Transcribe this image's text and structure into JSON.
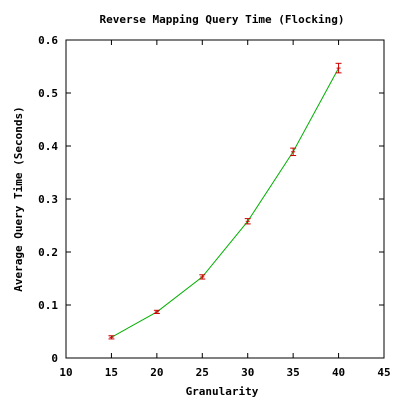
{
  "chart_data": {
    "type": "line",
    "title": "Reverse Mapping Query Time (Flocking)",
    "xlabel": "Granularity",
    "ylabel": "Average Query Time (Seconds)",
    "xlim": [
      10,
      45
    ],
    "ylim": [
      0,
      0.6
    ],
    "xticks": [
      10,
      15,
      20,
      25,
      30,
      35,
      40,
      45
    ],
    "yticks": [
      0,
      0.1,
      0.2,
      0.3,
      0.4,
      0.5,
      0.6
    ],
    "xtick_labels": [
      "10",
      "15",
      "20",
      "25",
      "30",
      "35",
      "40",
      "45"
    ],
    "ytick_labels": [
      "0",
      "0.1",
      "0.2",
      "0.3",
      "0.4",
      "0.5",
      "0.6"
    ],
    "grid": false,
    "legend": "none",
    "line_color": "#00b000",
    "errorbar_color": "#cc0000",
    "series": [
      {
        "x": [
          15,
          20,
          25,
          30,
          35,
          40
        ],
        "y": [
          0.039,
          0.087,
          0.153,
          0.258,
          0.389,
          0.547
        ],
        "err": [
          0.003,
          0.003,
          0.004,
          0.005,
          0.007,
          0.009
        ]
      }
    ]
  }
}
